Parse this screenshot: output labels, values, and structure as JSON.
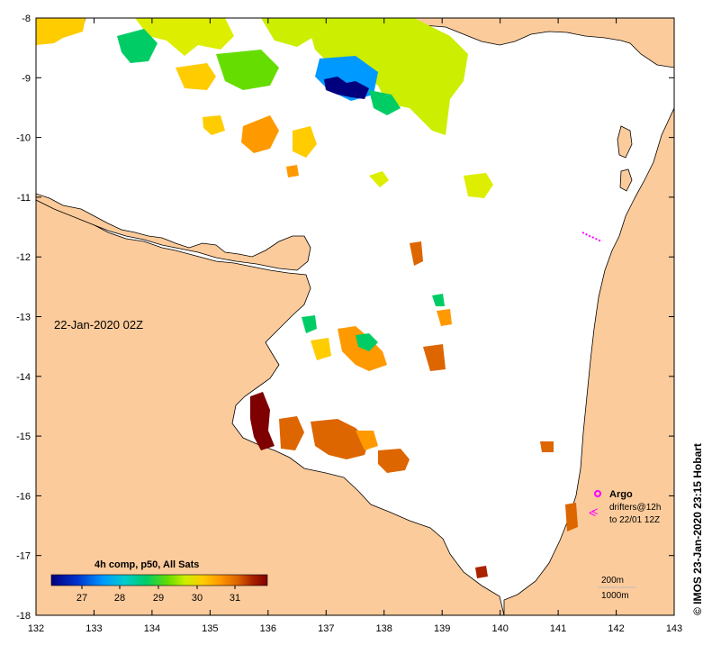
{
  "map": {
    "timestamp": "22-Jan-2020 02Z",
    "lon_ticks": [
      "132",
      "133",
      "134",
      "135",
      "136",
      "137",
      "138",
      "139",
      "140",
      "141",
      "142",
      "143"
    ],
    "lat_ticks": [
      "-8",
      "-9",
      "-10",
      "-11",
      "-12",
      "-13",
      "-14",
      "-15",
      "-16",
      "-17",
      "-18"
    ],
    "land_color": "#fccb9b",
    "ocean_color": "#ffffff"
  },
  "colorbar": {
    "title": "4h comp, p50, All Sats",
    "ticks": [
      "27",
      "28",
      "29",
      "30",
      "31"
    ],
    "colors": [
      "#00007f",
      "#0033cc",
      "#0099ff",
      "#00cccc",
      "#00cc66",
      "#66dd00",
      "#ccee00",
      "#ffcc00",
      "#ff9900",
      "#dd6600",
      "#aa2200",
      "#7f0000"
    ]
  },
  "legend": {
    "argo_label": "Argo",
    "drifters_label": "drifters@12h",
    "drifters_until": "to 22/01 12Z",
    "argo_color": "#ff00ff"
  },
  "contours": {
    "depth_200": "200m",
    "depth_1000": "1000m"
  },
  "credit": "© IMOS 23-Jan-2020 23:15 Hobart"
}
